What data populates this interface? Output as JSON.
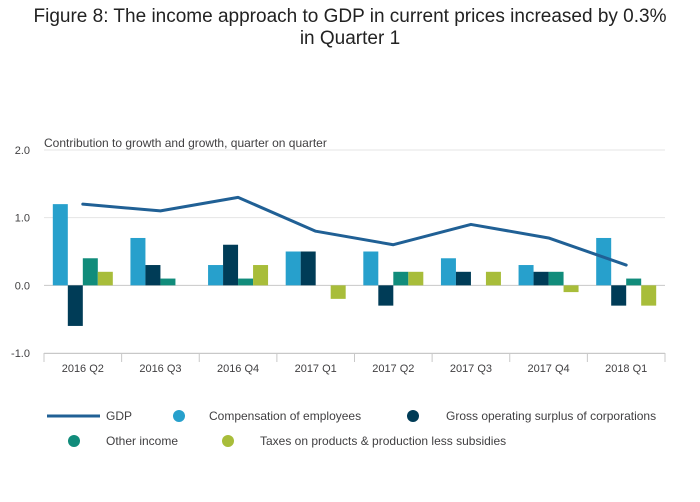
{
  "chart_data": {
    "type": "bar",
    "title_line1": "Figure 8: The income approach to GDP in current prices increased by 0.3%",
    "title_line2": "in Quarter 1",
    "ylabel": "Contribution to growth and growth, quarter on quarter",
    "categories": [
      "2016 Q2",
      "2016 Q3",
      "2016 Q4",
      "2017 Q1",
      "2017 Q2",
      "2017 Q3",
      "2017 Q4",
      "2018 Q1"
    ],
    "ylim": [
      -1.0,
      2.0
    ],
    "yticks": [
      {
        "value": 2.0,
        "label": "2.0"
      },
      {
        "value": 1.0,
        "label": "1.0"
      },
      {
        "value": 0.0,
        "label": "0.0"
      },
      {
        "value": -1.0,
        "label": "-1.0"
      }
    ],
    "grid": true,
    "legend_position": "bottom",
    "line_series": {
      "name": "GDP",
      "color": "#206095",
      "values": [
        1.2,
        1.1,
        1.3,
        0.8,
        0.6,
        0.9,
        0.7,
        0.3
      ]
    },
    "series": [
      {
        "name": "Compensation of employees",
        "color": "#27a0cc",
        "values": [
          1.2,
          0.7,
          0.3,
          0.5,
          0.5,
          0.4,
          0.3,
          0.7
        ]
      },
      {
        "name": "Gross operating surplus of corporations",
        "color": "#003c57",
        "values": [
          -0.6,
          0.3,
          0.6,
          0.5,
          -0.3,
          0.2,
          0.2,
          -0.3
        ]
      },
      {
        "name": "Other income",
        "color": "#118c7b",
        "values": [
          0.4,
          0.1,
          0.1,
          0.0,
          0.2,
          0.0,
          0.2,
          0.1
        ]
      },
      {
        "name": "Taxes on products & production less subsidies",
        "color": "#a8bd3a",
        "values": [
          0.2,
          0.0,
          0.3,
          -0.2,
          0.2,
          0.2,
          -0.1,
          -0.3
        ]
      }
    ]
  }
}
